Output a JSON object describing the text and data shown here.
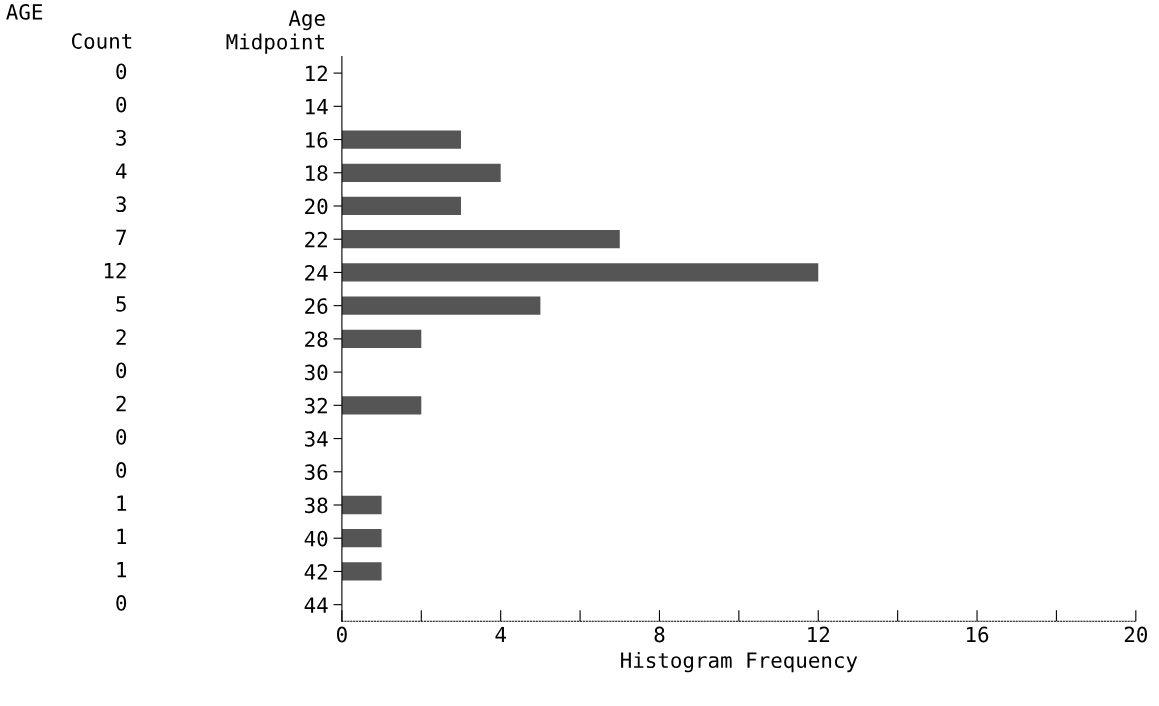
{
  "chart_data": {
    "type": "bar",
    "orientation": "horizontal",
    "title": "AGE",
    "ylabel": "Age Midpoint",
    "xlabel": "Histogram Frequency",
    "annotations": [
      "Count"
    ],
    "categories": [
      "12",
      "14",
      "16",
      "18",
      "20",
      "22",
      "24",
      "26",
      "28",
      "30",
      "32",
      "34",
      "36",
      "38",
      "40",
      "42",
      "44"
    ],
    "values": [
      0,
      0,
      3,
      4,
      3,
      7,
      12,
      5,
      2,
      0,
      2,
      0,
      0,
      1,
      1,
      1,
      0
    ],
    "color": "#555555",
    "data_labels": true,
    "xlim": [
      0,
      20
    ],
    "xticks": [
      0,
      {
        "value": 2,
        "label": null
      },
      4,
      {
        "value": 6,
        "label": null
      },
      8,
      {
        "value": 10,
        "label": null
      },
      12,
      {
        "value": 14,
        "label": null
      },
      16,
      {
        "value": 18,
        "label": null
      },
      20
    ],
    "grid": false,
    "legend": false
  }
}
